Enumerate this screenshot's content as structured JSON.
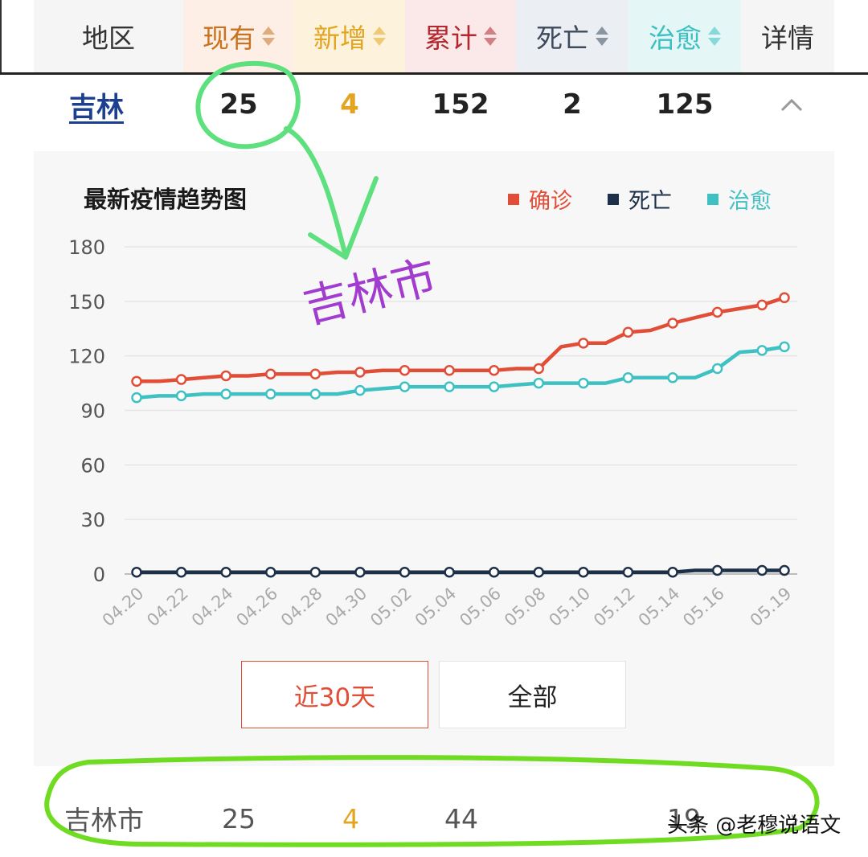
{
  "header": {
    "columns": [
      {
        "label": "地区",
        "color": "#333333",
        "bg": "#f5f5f5",
        "sortable": false
      },
      {
        "label": "现有",
        "color": "#c9731f",
        "bg": "#fdeee6",
        "sortable": true
      },
      {
        "label": "新增",
        "color": "#e3a521",
        "bg": "#fdf3dc",
        "sortable": true
      },
      {
        "label": "累计",
        "color": "#b3272d",
        "bg": "#fbe9ea",
        "sortable": true
      },
      {
        "label": "死亡",
        "color": "#3d4b5c",
        "bg": "#ebeff4",
        "sortable": true
      },
      {
        "label": "治愈",
        "color": "#3bbfc1",
        "bg": "#e4f6f6",
        "sortable": true
      },
      {
        "label": "详情",
        "color": "#333333",
        "bg": "#f5f5f5",
        "sortable": false
      }
    ]
  },
  "province_row": {
    "region": "吉林",
    "current": "25",
    "new": "4",
    "total": "152",
    "deaths": "2",
    "cured": "125"
  },
  "annotation_text": "吉林市",
  "chart": {
    "title": "最新疫情趋势图",
    "legend": [
      {
        "label": "确诊",
        "color": "#e14d36"
      },
      {
        "label": "死亡",
        "color": "#1d3049"
      },
      {
        "label": "治愈",
        "color": "#3fc1c3"
      }
    ],
    "buttons": {
      "recent": "近30天",
      "all": "全部"
    }
  },
  "chart_data": {
    "type": "line",
    "x": [
      "04.20",
      "04.21",
      "04.22",
      "04.23",
      "04.24",
      "04.25",
      "04.26",
      "04.27",
      "04.28",
      "04.29",
      "04.30",
      "05.01",
      "05.02",
      "05.03",
      "05.04",
      "05.05",
      "05.06",
      "05.07",
      "05.08",
      "05.09",
      "05.10",
      "05.11",
      "05.12",
      "05.13",
      "05.14",
      "05.15",
      "05.16",
      "05.17",
      "05.18",
      "05.19"
    ],
    "x_tick_labels": [
      "04.20",
      "04.22",
      "04.24",
      "04.26",
      "04.28",
      "04.30",
      "05.02",
      "05.04",
      "05.06",
      "05.08",
      "05.10",
      "05.12",
      "05.14",
      "05.16",
      "05.19"
    ],
    "y_ticks": [
      0,
      30,
      60,
      90,
      120,
      150,
      180
    ],
    "ylim": [
      0,
      180
    ],
    "grid": true,
    "legend_position": "top-right",
    "series": [
      {
        "name": "确诊",
        "color": "#e14d36",
        "values": [
          106,
          106,
          107,
          108,
          109,
          109,
          110,
          110,
          110,
          111,
          111,
          112,
          112,
          112,
          112,
          112,
          112,
          113,
          113,
          125,
          127,
          127,
          133,
          134,
          138,
          141,
          144,
          146,
          148,
          152
        ]
      },
      {
        "name": "死亡",
        "color": "#1d3049",
        "values": [
          1,
          1,
          1,
          1,
          1,
          1,
          1,
          1,
          1,
          1,
          1,
          1,
          1,
          1,
          1,
          1,
          1,
          1,
          1,
          1,
          1,
          1,
          1,
          1,
          1,
          2,
          2,
          2,
          2,
          2
        ]
      },
      {
        "name": "治愈",
        "color": "#3fc1c3",
        "values": [
          97,
          98,
          98,
          99,
          99,
          99,
          99,
          99,
          99,
          99,
          101,
          102,
          103,
          103,
          103,
          103,
          103,
          104,
          105,
          105,
          105,
          105,
          108,
          108,
          108,
          108,
          113,
          122,
          123,
          125
        ]
      }
    ]
  },
  "city_row": {
    "region": "吉林市",
    "current": "25",
    "new": "4",
    "total": "44",
    "cured": "19"
  },
  "watermark": "头条 @老穆说语文"
}
